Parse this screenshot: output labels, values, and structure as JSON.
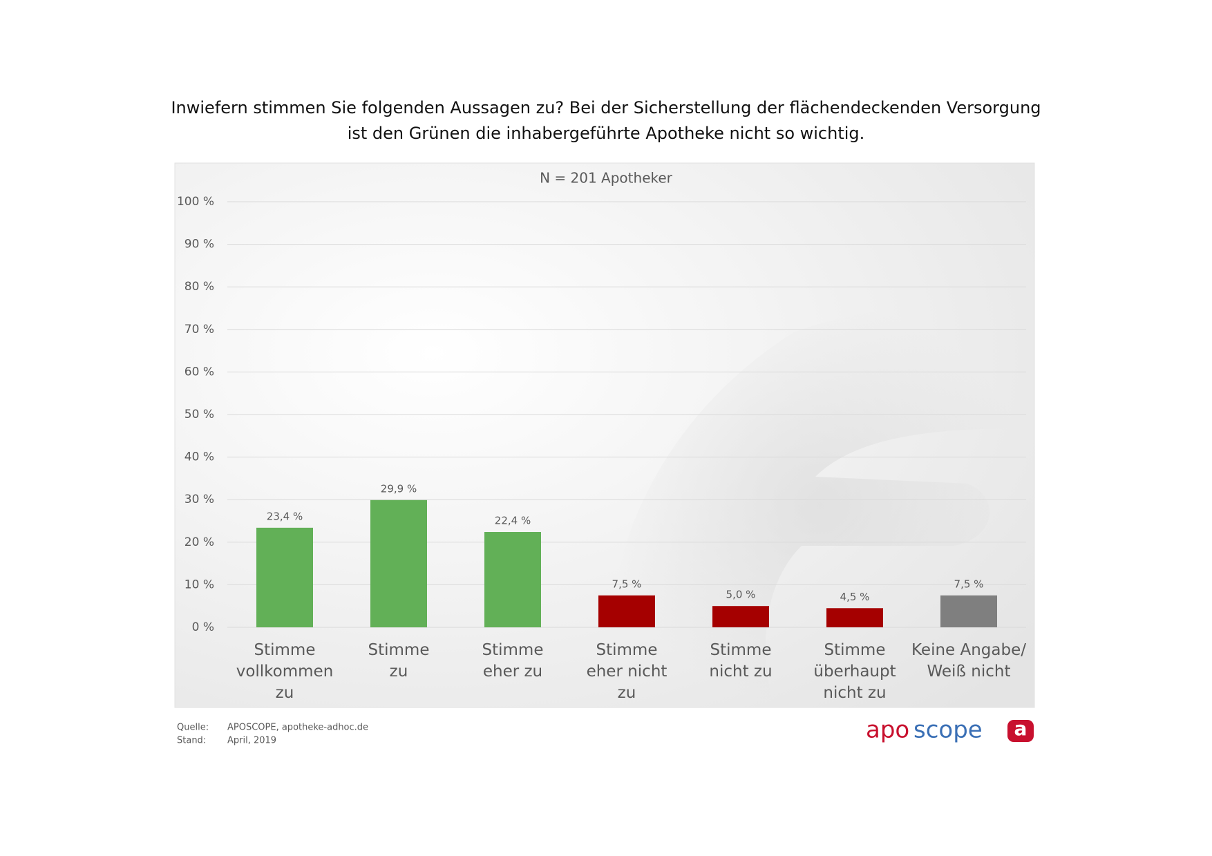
{
  "chart_data": {
    "type": "bar",
    "title": "Inwiefern stimmen Sie folgenden Aussagen zu? Bei der Sicherstellung der flächendeckenden Versorgung\nist den Grünen die inhabergeführte Apotheke nicht so wichtig.",
    "subtitle": "N = 201 Apotheker",
    "categories": [
      "Stimme\nvollkommen\nzu",
      "Stimme\nzu",
      "Stimme\neher zu",
      "Stimme\neher nicht\nzu",
      "Stimme\nnicht zu",
      "Stimme\nüberhaupt\nnicht zu",
      "Keine Angabe/\nWeiß nicht"
    ],
    "values": [
      23.4,
      29.9,
      22.4,
      7.5,
      5.0,
      4.5,
      7.5
    ],
    "value_labels": [
      "23,4 %",
      "29,9 %",
      "22,4 %",
      "7,5 %",
      "5,0 %",
      "4,5 %",
      "7,5 %"
    ],
    "colors": [
      "#62b057",
      "#62b057",
      "#62b057",
      "#a50000",
      "#a50000",
      "#a50000",
      "#7f7f7f"
    ],
    "ylim": [
      0,
      100
    ],
    "yticks": [
      {
        "value": 0,
        "label": "0 %"
      },
      {
        "value": 10,
        "label": "10 %"
      },
      {
        "value": 20,
        "label": "20 %"
      },
      {
        "value": 30,
        "label": "30 %"
      },
      {
        "value": 40,
        "label": "40 %"
      },
      {
        "value": 50,
        "label": "50 %"
      },
      {
        "value": 60,
        "label": "60 %"
      },
      {
        "value": 70,
        "label": "70 %"
      },
      {
        "value": 80,
        "label": "80 %"
      },
      {
        "value": 90,
        "label": "90 %"
      },
      {
        "value": 100,
        "label": "100 %"
      }
    ],
    "grid": true
  },
  "footer": {
    "source_label": "Quelle:",
    "source": "APOSCOPE, apotheke-adhoc.de",
    "date_label": "Stand:",
    "date": "April, 2019",
    "logo": [
      "apo",
      "scope"
    ],
    "logo_icon": "a"
  }
}
